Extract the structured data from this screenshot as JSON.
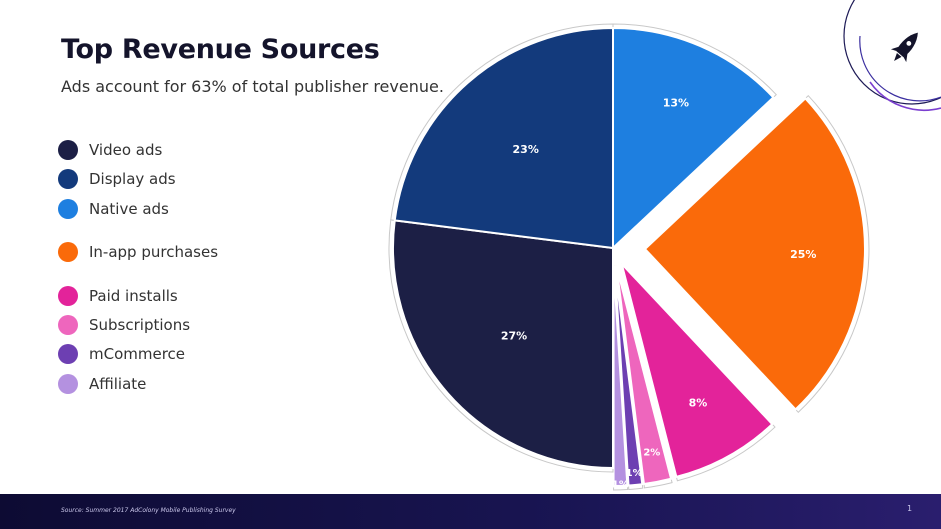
{
  "slide": {
    "title": "Top Revenue Sources",
    "subtitle": "Ads account for 63% of total publisher revenue.",
    "source": "Source:  Summer 2017 AdColony Mobile Publishing Survey",
    "page_number": "1",
    "logo_icon": "rocket-icon"
  },
  "chart_data": {
    "type": "pie",
    "title": "Top Revenue Sources",
    "legend_position": "left",
    "slices": [
      {
        "name": "Video ads",
        "value": 27,
        "label": "27%",
        "color": "#1c1f45"
      },
      {
        "name": "Display ads",
        "value": 23,
        "label": "23%",
        "color": "#133a7c"
      },
      {
        "name": "Native ads",
        "value": 13,
        "label": "13%",
        "color": "#1e7fe0"
      },
      {
        "name": "In-app purchases",
        "value": 25,
        "label": "25%",
        "color": "#fa6a0a"
      },
      {
        "name": "Paid installs",
        "value": 8,
        "label": "8%",
        "color": "#e3239a"
      },
      {
        "name": "Subscriptions",
        "value": 2,
        "label": "2%",
        "color": "#ee66bd"
      },
      {
        "name": "mCommerce",
        "value": 1,
        "label": "1%",
        "color": "#6d3fb2"
      },
      {
        "name": "Affiliate",
        "value": 1,
        "label": "1%",
        "color": "#b491e0"
      }
    ]
  }
}
